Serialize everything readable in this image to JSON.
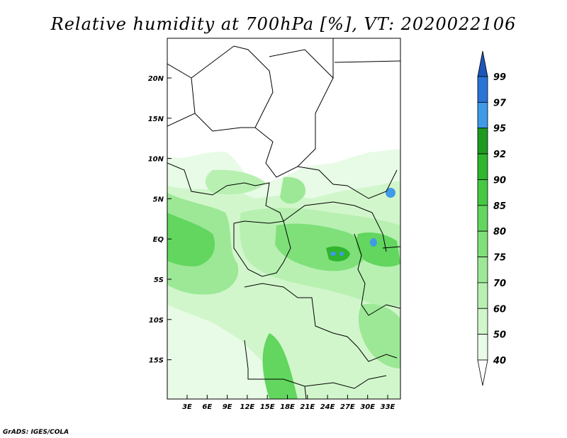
{
  "map": {
    "title": "Relative humidity at 700hPa [%], VT: 2020022106",
    "credit": "GrADS: IGES/COLA",
    "lon_ticks": [
      "3E",
      "6E",
      "9E",
      "12E",
      "15E",
      "18E",
      "21E",
      "24E",
      "27E",
      "30E",
      "33E"
    ],
    "lat_ticks": [
      "20N",
      "15N",
      "10N",
      "5N",
      "EQ",
      "5S",
      "10S",
      "15S"
    ],
    "region": "Central Africa",
    "colors": {
      "background": "#ffffff",
      "border": "#000000"
    }
  },
  "colorbar": {
    "levels": [
      "40",
      "50",
      "60",
      "70",
      "75",
      "80",
      "85",
      "90",
      "92",
      "95",
      "97",
      "99"
    ],
    "colors": [
      "#ffffff",
      "#e8fbe6",
      "#d2f6cc",
      "#b8f0b2",
      "#9ce896",
      "#7fe07a",
      "#62d65e",
      "#45c943",
      "#2fb52e",
      "#1f9a1e",
      "#3f9ae8",
      "#2a74d8",
      "#1d56b8"
    ]
  }
}
